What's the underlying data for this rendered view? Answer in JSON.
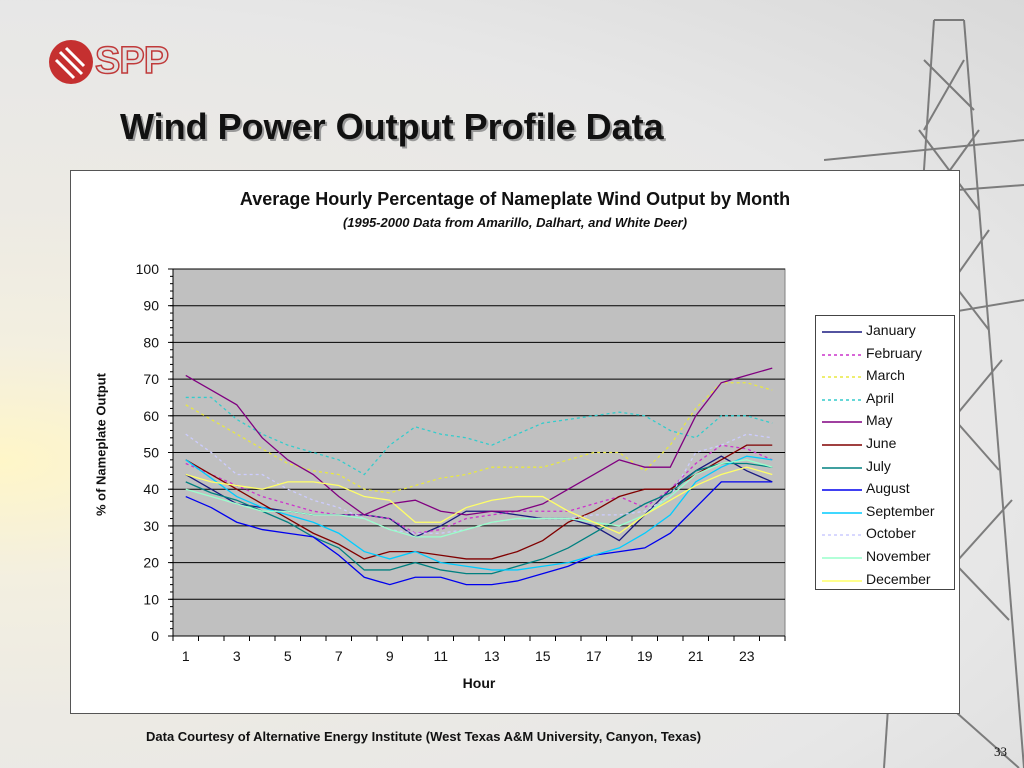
{
  "slide": {
    "logo_text": "SPP",
    "title": "Wind Power Output Profile Data",
    "footnote": "Data Courtesy of Alternative Energy Institute (West Texas A&M University, Canyon, Texas)",
    "page_number": "33"
  },
  "chart_data": {
    "type": "line",
    "title": "Average Hourly Percentage of Nameplate Wind Output by Month",
    "subtitle": "(1995-2000 Data from Amarillo, Dalhart, and White Deer)",
    "xlabel": "Hour",
    "ylabel": "% of Nameplate Output",
    "ylim": [
      0,
      100
    ],
    "yticks": [
      0,
      10,
      20,
      30,
      40,
      50,
      60,
      70,
      80,
      90,
      100
    ],
    "x": [
      1,
      2,
      3,
      4,
      5,
      6,
      7,
      8,
      9,
      10,
      11,
      12,
      13,
      14,
      15,
      16,
      17,
      18,
      19,
      20,
      21,
      22,
      23,
      24
    ],
    "xtick_labels": [
      "1",
      "3",
      "5",
      "7",
      "9",
      "11",
      "13",
      "15",
      "17",
      "19",
      "21",
      "23"
    ],
    "grid": true,
    "legend_position": "right",
    "series": [
      {
        "name": "January",
        "color": "#1a1a80",
        "dash": "solid",
        "values": [
          44,
          40,
          36,
          35,
          34,
          33,
          33,
          33,
          32,
          27,
          30,
          34,
          34,
          33,
          32,
          32,
          30,
          26,
          33,
          40,
          45,
          49,
          45,
          42
        ]
      },
      {
        "name": "February",
        "color": "#cc33cc",
        "dash": "dotted",
        "values": [
          47,
          44,
          41,
          38,
          36,
          34,
          33,
          33,
          32,
          28,
          29,
          32,
          33,
          34,
          34,
          34,
          36,
          38,
          35,
          40,
          47,
          52,
          51,
          48
        ]
      },
      {
        "name": "March",
        "color": "#e8e840",
        "dash": "dotted",
        "values": [
          63,
          59,
          55,
          51,
          47,
          45,
          44,
          40,
          39,
          41,
          43,
          44,
          46,
          46,
          46,
          48,
          50,
          50,
          45,
          52,
          62,
          69,
          69,
          67
        ]
      },
      {
        "name": "April",
        "color": "#33cccc",
        "dash": "dotted",
        "values": [
          65,
          65,
          59,
          55,
          52,
          50,
          48,
          44,
          52,
          57,
          55,
          54,
          52,
          55,
          58,
          59,
          60,
          61,
          60,
          56,
          54,
          60,
          60,
          58
        ]
      },
      {
        "name": "May",
        "color": "#800080",
        "dash": "solid",
        "values": [
          71,
          67,
          63,
          54,
          48,
          44,
          38,
          33,
          36,
          37,
          34,
          33,
          34,
          34,
          36,
          40,
          44,
          48,
          46,
          46,
          60,
          69,
          71,
          73
        ]
      },
      {
        "name": "June",
        "color": "#800000",
        "dash": "solid",
        "values": [
          48,
          44,
          40,
          36,
          32,
          28,
          25,
          21,
          23,
          23,
          22,
          21,
          21,
          23,
          26,
          31,
          34,
          38,
          40,
          40,
          44,
          48,
          52,
          52
        ]
      },
      {
        "name": "July",
        "color": "#008080",
        "dash": "solid",
        "values": [
          42,
          39,
          37,
          34,
          31,
          27,
          24,
          18,
          18,
          20,
          18,
          17,
          17,
          19,
          21,
          24,
          28,
          32,
          36,
          39,
          45,
          47,
          47,
          46
        ]
      },
      {
        "name": "August",
        "color": "#0000ee",
        "dash": "solid",
        "values": [
          38,
          35,
          31,
          29,
          28,
          27,
          22,
          16,
          14,
          16,
          16,
          14,
          14,
          15,
          17,
          19,
          22,
          23,
          24,
          28,
          35,
          42,
          42,
          42
        ]
      },
      {
        "name": "September",
        "color": "#00ccff",
        "dash": "solid",
        "values": [
          48,
          43,
          38,
          35,
          33,
          31,
          28,
          23,
          21,
          23,
          20,
          19,
          18,
          18,
          19,
          20,
          22,
          24,
          28,
          33,
          42,
          46,
          49,
          48
        ]
      },
      {
        "name": "October",
        "color": "#ccccff",
        "dash": "dotted",
        "values": [
          55,
          50,
          44,
          44,
          40,
          37,
          35,
          32,
          29,
          28,
          28,
          29,
          31,
          32,
          32,
          32,
          33,
          33,
          34,
          38,
          50,
          52,
          55,
          54
        ]
      },
      {
        "name": "November",
        "color": "#99ffcc",
        "dash": "solid",
        "values": [
          40,
          38,
          36,
          34,
          34,
          33,
          33,
          32,
          29,
          27,
          27,
          29,
          31,
          32,
          32,
          32,
          31,
          30,
          33,
          38,
          44,
          47,
          48,
          46
        ]
      },
      {
        "name": "December",
        "color": "#ffff66",
        "dash": "solid",
        "values": [
          44,
          42,
          41,
          40,
          42,
          42,
          41,
          38,
          37,
          31,
          31,
          35,
          37,
          38,
          38,
          34,
          31,
          28,
          33,
          37,
          41,
          44,
          46,
          44
        ]
      }
    ]
  }
}
